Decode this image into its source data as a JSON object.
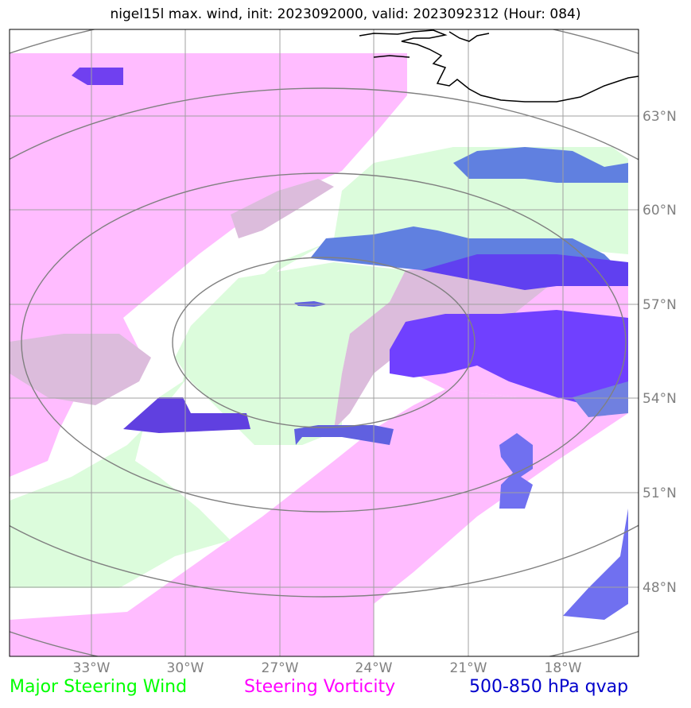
{
  "title": "nigel15l max. wind, init: 2023092000, valid: 2023092312 (Hour: 084)",
  "map": {
    "lon_labels": [
      "33°W",
      "30°W",
      "27°W",
      "24°W",
      "21°W",
      "18°W"
    ],
    "lat_labels": [
      "63°N",
      "60°N",
      "57°N",
      "54°N",
      "51°N",
      "48°N"
    ],
    "lon_values": [
      -33,
      -30,
      -27,
      -24,
      -21,
      -18
    ],
    "lat_values": [
      63,
      60,
      57,
      54,
      51,
      48
    ],
    "grid": true,
    "range_rings": 4
  },
  "legend": [
    {
      "label": "Major Steering Wind",
      "color": "#00ff00"
    },
    {
      "label": "Steering Vorticity",
      "color": "#ff00ff"
    },
    {
      "label": "500-850 hPa qvap",
      "color": "#0000cc"
    }
  ],
  "colors": {
    "wind_fill": "#dcfcdc",
    "vorticity_fill": "#ffbcff",
    "qvap_fill": "#6060f0",
    "overlap_fill": "#dcbcdc",
    "ring": "#808080",
    "grid": "#a0a0a0",
    "coast": "#000000"
  }
}
